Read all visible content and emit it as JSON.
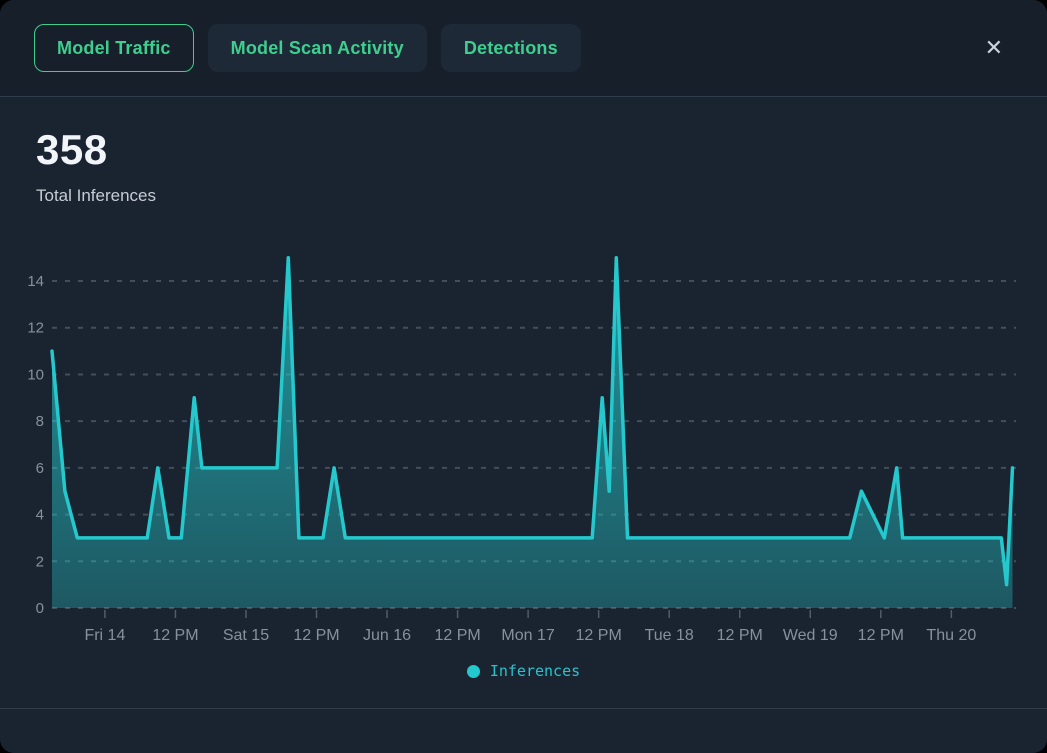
{
  "header": {
    "tabs": [
      {
        "label": "Model Traffic",
        "active": true
      },
      {
        "label": "Model Scan Activity",
        "active": false
      },
      {
        "label": "Detections",
        "active": false
      }
    ],
    "close_icon": "✕"
  },
  "stats": {
    "total_value": "358",
    "total_label": "Total Inferences"
  },
  "legend": {
    "series_label": "Inferences"
  },
  "colors": {
    "accent_green": "#3ecf8e",
    "series_cyan": "#25c9cd",
    "axis_text": "#87919e",
    "grid": "#78828f",
    "window_bg": "#1a2330",
    "header_bg": "#171f2b"
  },
  "chart_data": {
    "type": "area",
    "title": "",
    "xlabel": "",
    "ylabel": "",
    "x_unit": "hours",
    "xlim": [
      0,
      164
    ],
    "ylim": [
      0,
      15.2
    ],
    "grid": true,
    "legend_position": "bottom-center",
    "yticks": [
      0,
      2,
      4,
      6,
      8,
      10,
      12,
      14
    ],
    "xticks": [
      {
        "h": 9,
        "label": "Fri 14"
      },
      {
        "h": 21,
        "label": "12 PM"
      },
      {
        "h": 33,
        "label": "Sat 15"
      },
      {
        "h": 45,
        "label": "12 PM"
      },
      {
        "h": 57,
        "label": "Jun 16"
      },
      {
        "h": 69,
        "label": "12 PM"
      },
      {
        "h": 81,
        "label": "Mon 17"
      },
      {
        "h": 93,
        "label": "12 PM"
      },
      {
        "h": 105,
        "label": "Tue 18"
      },
      {
        "h": 117,
        "label": "12 PM"
      },
      {
        "h": 129,
        "label": "Wed 19"
      },
      {
        "h": 141,
        "label": "12 PM"
      },
      {
        "h": 153,
        "label": "Thu 20"
      }
    ],
    "series": [
      {
        "name": "Inferences",
        "points": [
          [
            0,
            11
          ],
          [
            2.2,
            5
          ],
          [
            4.3,
            3
          ],
          [
            16.2,
            3
          ],
          [
            18,
            6
          ],
          [
            19.9,
            3
          ],
          [
            22,
            3
          ],
          [
            24.2,
            9
          ],
          [
            25.5,
            6
          ],
          [
            38.3,
            6
          ],
          [
            40.2,
            15
          ],
          [
            42,
            3
          ],
          [
            46.1,
            3
          ],
          [
            48,
            6
          ],
          [
            49.9,
            3
          ],
          [
            91.9,
            3
          ],
          [
            93.6,
            9
          ],
          [
            94.8,
            5
          ],
          [
            96,
            15
          ],
          [
            97.9,
            3
          ],
          [
            135.7,
            3
          ],
          [
            137.7,
            5
          ],
          [
            141.6,
            3
          ],
          [
            143.7,
            6
          ],
          [
            144.7,
            3
          ],
          [
            161.5,
            3
          ],
          [
            162.4,
            1
          ],
          [
            163.4,
            6
          ]
        ]
      }
    ],
    "line_color": "#25c9cd",
    "area_top_color": "rgba(37,201,205,0.70)",
    "area_bottom_color": "rgba(37,201,205,0.32)"
  }
}
